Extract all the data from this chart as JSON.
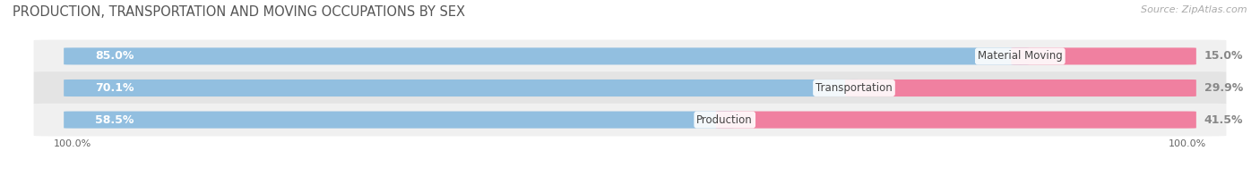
{
  "title": "PRODUCTION, TRANSPORTATION AND MOVING OCCUPATIONS BY SEX",
  "source": "Source: ZipAtlas.com",
  "categories": [
    "Material Moving",
    "Transportation",
    "Production"
  ],
  "male_values": [
    85.0,
    70.1,
    58.5
  ],
  "female_values": [
    15.0,
    29.9,
    41.5
  ],
  "male_color": "#92bfe0",
  "female_color": "#f080a0",
  "male_label_inside_color": "#ffffff",
  "male_label_outside_color": "#888888",
  "female_label_color": "#888888",
  "label_fontsize": 9,
  "title_fontsize": 10.5,
  "source_fontsize": 8,
  "axis_label": "100.0%",
  "bar_height": 0.52,
  "background_color": "#ffffff",
  "row_bg_light": "#f0f0f0",
  "row_bg_dark": "#e4e4e4",
  "inside_label_threshold": 0.15
}
